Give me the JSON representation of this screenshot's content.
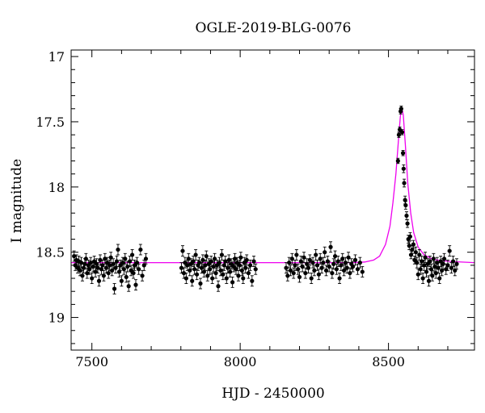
{
  "chart_data": {
    "type": "scatter",
    "title": "OGLE-2019-BLG-0076",
    "xlabel": "HJD - 2450000",
    "ylabel": "I magnitude",
    "xlim": [
      7430,
      8790
    ],
    "ylim": [
      19.25,
      16.95
    ],
    "y_inverted": true,
    "x_ticks": [
      7500,
      8000,
      8500
    ],
    "x_tick_labels": [
      "7500",
      "8000",
      "8500"
    ],
    "y_ticks": [
      17,
      17.5,
      18,
      18.5,
      19
    ],
    "y_tick_labels": [
      "17",
      "17.5",
      "18",
      "18.5",
      "19"
    ],
    "grid": false,
    "colors": {
      "points": "#000000",
      "model": "#ee00ee"
    },
    "model": {
      "name": "",
      "baseline_mag": 18.58,
      "peak_time": 8545,
      "peak_mag": 17.39,
      "x": [
        7430,
        7600,
        7800,
        8000,
        8200,
        8380,
        8420,
        8450,
        8470,
        8490,
        8505,
        8515,
        8525,
        8533,
        8540,
        8545,
        8550,
        8557,
        8565,
        8575,
        8585,
        8600,
        8620,
        8650,
        8700,
        8790
      ],
      "y": [
        18.58,
        18.58,
        18.58,
        18.58,
        18.58,
        18.58,
        18.575,
        18.56,
        18.53,
        18.44,
        18.3,
        18.12,
        17.9,
        17.66,
        17.46,
        17.39,
        17.45,
        17.68,
        17.97,
        18.2,
        18.35,
        18.46,
        18.52,
        18.555,
        18.57,
        18.58
      ]
    },
    "series": [
      {
        "name": "",
        "points": [
          [
            7440,
            18.53,
            0.04
          ],
          [
            7444,
            18.6,
            0.04
          ],
          [
            7448,
            18.56,
            0.04
          ],
          [
            7452,
            18.62,
            0.04
          ],
          [
            7456,
            18.57,
            0.04
          ],
          [
            7460,
            18.64,
            0.04
          ],
          [
            7464,
            18.58,
            0.04
          ],
          [
            7468,
            18.68,
            0.04
          ],
          [
            7472,
            18.62,
            0.04
          ],
          [
            7476,
            18.59,
            0.04
          ],
          [
            7480,
            18.55,
            0.04
          ],
          [
            7484,
            18.66,
            0.04
          ],
          [
            7488,
            18.6,
            0.04
          ],
          [
            7492,
            18.63,
            0.04
          ],
          [
            7496,
            18.58,
            0.04
          ],
          [
            7500,
            18.7,
            0.04
          ],
          [
            7504,
            18.61,
            0.04
          ],
          [
            7508,
            18.57,
            0.04
          ],
          [
            7512,
            18.65,
            0.04
          ],
          [
            7516,
            18.59,
            0.04
          ],
          [
            7520,
            18.62,
            0.04
          ],
          [
            7524,
            18.72,
            0.04
          ],
          [
            7528,
            18.56,
            0.04
          ],
          [
            7532,
            18.63,
            0.04
          ],
          [
            7536,
            18.6,
            0.04
          ],
          [
            7540,
            18.68,
            0.04
          ],
          [
            7544,
            18.55,
            0.04
          ],
          [
            7548,
            18.62,
            0.04
          ],
          [
            7552,
            18.58,
            0.04
          ],
          [
            7556,
            18.66,
            0.04
          ],
          [
            7560,
            18.6,
            0.04
          ],
          [
            7564,
            18.54,
            0.04
          ],
          [
            7568,
            18.64,
            0.04
          ],
          [
            7572,
            18.59,
            0.04
          ],
          [
            7576,
            18.78,
            0.04
          ],
          [
            7580,
            18.62,
            0.04
          ],
          [
            7584,
            18.57,
            0.04
          ],
          [
            7588,
            18.48,
            0.04
          ],
          [
            7592,
            18.65,
            0.04
          ],
          [
            7596,
            18.6,
            0.04
          ],
          [
            7600,
            18.72,
            0.04
          ],
          [
            7604,
            18.58,
            0.04
          ],
          [
            7608,
            18.63,
            0.04
          ],
          [
            7612,
            18.55,
            0.04
          ],
          [
            7616,
            18.69,
            0.04
          ],
          [
            7620,
            18.61,
            0.04
          ],
          [
            7624,
            18.76,
            0.04
          ],
          [
            7628,
            18.57,
            0.04
          ],
          [
            7632,
            18.64,
            0.04
          ],
          [
            7636,
            18.52,
            0.04
          ],
          [
            7640,
            18.66,
            0.04
          ],
          [
            7644,
            18.6,
            0.04
          ],
          [
            7648,
            18.75,
            0.04
          ],
          [
            7652,
            18.58,
            0.04
          ],
          [
            7658,
            18.63,
            0.04
          ],
          [
            7664,
            18.48,
            0.04
          ],
          [
            7670,
            18.68,
            0.04
          ],
          [
            7676,
            18.6,
            0.04
          ],
          [
            7682,
            18.55,
            0.04
          ],
          [
            7802,
            18.62,
            0.04
          ],
          [
            7806,
            18.49,
            0.04
          ],
          [
            7810,
            18.66,
            0.04
          ],
          [
            7814,
            18.58,
            0.04
          ],
          [
            7818,
            18.7,
            0.04
          ],
          [
            7822,
            18.6,
            0.04
          ],
          [
            7826,
            18.55,
            0.04
          ],
          [
            7830,
            18.64,
            0.04
          ],
          [
            7834,
            18.59,
            0.04
          ],
          [
            7838,
            18.72,
            0.04
          ],
          [
            7842,
            18.57,
            0.04
          ],
          [
            7846,
            18.63,
            0.04
          ],
          [
            7850,
            18.52,
            0.04
          ],
          [
            7854,
            18.67,
            0.04
          ],
          [
            7858,
            18.6,
            0.04
          ],
          [
            7862,
            18.58,
            0.04
          ],
          [
            7866,
            18.74,
            0.04
          ],
          [
            7870,
            18.62,
            0.04
          ],
          [
            7874,
            18.56,
            0.04
          ],
          [
            7878,
            18.65,
            0.04
          ],
          [
            7882,
            18.6,
            0.04
          ],
          [
            7886,
            18.53,
            0.04
          ],
          [
            7890,
            18.68,
            0.04
          ],
          [
            7894,
            18.59,
            0.04
          ],
          [
            7898,
            18.63,
            0.04
          ],
          [
            7902,
            18.57,
            0.04
          ],
          [
            7906,
            18.7,
            0.04
          ],
          [
            7910,
            18.61,
            0.04
          ],
          [
            7914,
            18.55,
            0.04
          ],
          [
            7918,
            18.66,
            0.04
          ],
          [
            7922,
            18.6,
            0.04
          ],
          [
            7926,
            18.76,
            0.04
          ],
          [
            7930,
            18.58,
            0.04
          ],
          [
            7934,
            18.64,
            0.04
          ],
          [
            7938,
            18.52,
            0.04
          ],
          [
            7942,
            18.67,
            0.04
          ],
          [
            7946,
            18.6,
            0.04
          ],
          [
            7950,
            18.57,
            0.04
          ],
          [
            7954,
            18.7,
            0.04
          ],
          [
            7958,
            18.62,
            0.04
          ],
          [
            7962,
            18.56,
            0.04
          ],
          [
            7966,
            18.65,
            0.04
          ],
          [
            7970,
            18.59,
            0.04
          ],
          [
            7974,
            18.73,
            0.04
          ],
          [
            7978,
            18.61,
            0.04
          ],
          [
            7982,
            18.55,
            0.04
          ],
          [
            7986,
            18.63,
            0.04
          ],
          [
            7990,
            18.58,
            0.04
          ],
          [
            7994,
            18.68,
            0.04
          ],
          [
            7998,
            18.6,
            0.04
          ],
          [
            8002,
            18.54,
            0.04
          ],
          [
            8006,
            18.64,
            0.04
          ],
          [
            8010,
            18.7,
            0.04
          ],
          [
            8014,
            18.58,
            0.04
          ],
          [
            8018,
            18.62,
            0.04
          ],
          [
            8022,
            18.56,
            0.04
          ],
          [
            8028,
            18.66,
            0.04
          ],
          [
            8034,
            18.6,
            0.04
          ],
          [
            8040,
            18.72,
            0.04
          ],
          [
            8046,
            18.57,
            0.04
          ],
          [
            8052,
            18.63,
            0.04
          ],
          [
            8155,
            18.62,
            0.04
          ],
          [
            8160,
            18.68,
            0.04
          ],
          [
            8165,
            18.58,
            0.04
          ],
          [
            8170,
            18.64,
            0.04
          ],
          [
            8175,
            18.55,
            0.04
          ],
          [
            8180,
            18.66,
            0.04
          ],
          [
            8185,
            18.6,
            0.04
          ],
          [
            8190,
            18.52,
            0.04
          ],
          [
            8195,
            18.63,
            0.04
          ],
          [
            8200,
            18.69,
            0.04
          ],
          [
            8205,
            18.57,
            0.04
          ],
          [
            8210,
            18.61,
            0.04
          ],
          [
            8215,
            18.54,
            0.04
          ],
          [
            8220,
            18.66,
            0.04
          ],
          [
            8225,
            18.59,
            0.04
          ],
          [
            8230,
            18.62,
            0.04
          ],
          [
            8235,
            18.56,
            0.04
          ],
          [
            8240,
            18.7,
            0.04
          ],
          [
            8245,
            18.58,
            0.04
          ],
          [
            8250,
            18.64,
            0.04
          ],
          [
            8255,
            18.52,
            0.04
          ],
          [
            8260,
            18.6,
            0.04
          ],
          [
            8265,
            18.67,
            0.04
          ],
          [
            8270,
            18.55,
            0.04
          ],
          [
            8275,
            18.62,
            0.04
          ],
          [
            8280,
            18.58,
            0.04
          ],
          [
            8285,
            18.5,
            0.04
          ],
          [
            8290,
            18.64,
            0.04
          ],
          [
            8295,
            18.57,
            0.04
          ],
          [
            8300,
            18.61,
            0.04
          ],
          [
            8305,
            18.46,
            0.04
          ],
          [
            8310,
            18.66,
            0.04
          ],
          [
            8315,
            18.59,
            0.04
          ],
          [
            8320,
            18.53,
            0.04
          ],
          [
            8325,
            18.63,
            0.04
          ],
          [
            8330,
            18.57,
            0.04
          ],
          [
            8335,
            18.7,
            0.04
          ],
          [
            8340,
            18.6,
            0.04
          ],
          [
            8345,
            18.55,
            0.04
          ],
          [
            8350,
            18.64,
            0.04
          ],
          [
            8355,
            18.58,
            0.04
          ],
          [
            8360,
            18.62,
            0.04
          ],
          [
            8365,
            18.54,
            0.04
          ],
          [
            8370,
            18.66,
            0.04
          ],
          [
            8375,
            18.59,
            0.04
          ],
          [
            8380,
            18.61,
            0.04
          ],
          [
            8388,
            18.56,
            0.04
          ],
          [
            8396,
            18.63,
            0.04
          ],
          [
            8404,
            18.58,
            0.04
          ],
          [
            8412,
            18.65,
            0.04
          ],
          [
            8532,
            17.8,
            0.02
          ],
          [
            8535,
            17.6,
            0.02
          ],
          [
            8538,
            17.56,
            0.02
          ],
          [
            8541,
            17.42,
            0.02
          ],
          [
            8543,
            17.4,
            0.02
          ],
          [
            8546,
            17.58,
            0.02
          ],
          [
            8549,
            17.74,
            0.02
          ],
          [
            8551,
            17.86,
            0.03
          ],
          [
            8553,
            17.97,
            0.03
          ],
          [
            8556,
            18.1,
            0.03
          ],
          [
            8558,
            18.14,
            0.03
          ],
          [
            8561,
            18.22,
            0.03
          ],
          [
            8564,
            18.28,
            0.03
          ],
          [
            8567,
            18.4,
            0.03
          ],
          [
            8570,
            18.45,
            0.03
          ],
          [
            8573,
            18.38,
            0.03
          ],
          [
            8576,
            18.52,
            0.03
          ],
          [
            8580,
            18.48,
            0.03
          ],
          [
            8584,
            18.44,
            0.03
          ],
          [
            8588,
            18.56,
            0.03
          ],
          [
            8592,
            18.5,
            0.04
          ],
          [
            8596,
            18.58,
            0.04
          ],
          [
            8600,
            18.67,
            0.04
          ],
          [
            8604,
            18.52,
            0.04
          ],
          [
            8608,
            18.63,
            0.04
          ],
          [
            8612,
            18.57,
            0.04
          ],
          [
            8616,
            18.7,
            0.04
          ],
          [
            8620,
            18.6,
            0.04
          ],
          [
            8624,
            18.54,
            0.04
          ],
          [
            8628,
            18.65,
            0.04
          ],
          [
            8632,
            18.59,
            0.04
          ],
          [
            8636,
            18.72,
            0.04
          ],
          [
            8640,
            18.57,
            0.04
          ],
          [
            8644,
            18.63,
            0.04
          ],
          [
            8648,
            18.68,
            0.04
          ],
          [
            8652,
            18.55,
            0.04
          ],
          [
            8656,
            18.61,
            0.04
          ],
          [
            8660,
            18.66,
            0.04
          ],
          [
            8664,
            18.58,
            0.04
          ],
          [
            8668,
            18.62,
            0.04
          ],
          [
            8672,
            18.7,
            0.04
          ],
          [
            8676,
            18.57,
            0.04
          ],
          [
            8680,
            18.64,
            0.04
          ],
          [
            8684,
            18.59,
            0.04
          ],
          [
            8688,
            18.55,
            0.04
          ],
          [
            8694,
            18.63,
            0.04
          ],
          [
            8700,
            18.6,
            0.04
          ],
          [
            8706,
            18.49,
            0.04
          ],
          [
            8712,
            18.62,
            0.04
          ],
          [
            8718,
            18.57,
            0.04
          ],
          [
            8724,
            18.64,
            0.04
          ],
          [
            8730,
            18.59,
            0.04
          ]
        ]
      }
    ]
  }
}
